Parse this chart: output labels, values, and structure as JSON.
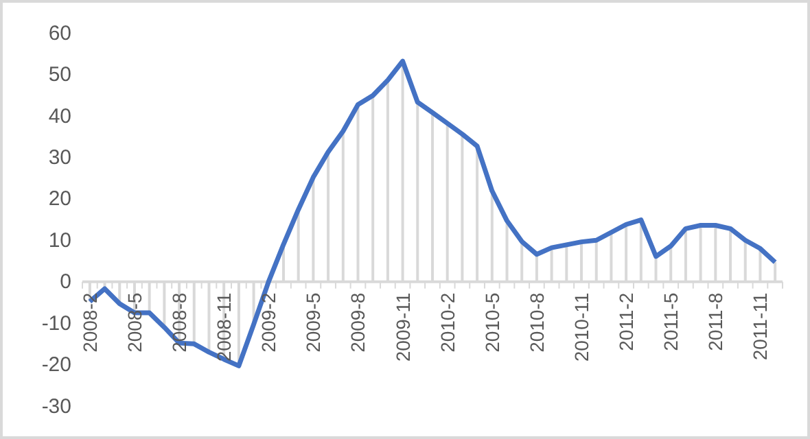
{
  "chart_data": {
    "type": "line",
    "categories": [
      "2008-2",
      null,
      null,
      "2008-5",
      null,
      null,
      "2008-8",
      null,
      null,
      "2008-11",
      null,
      null,
      "2009-2",
      null,
      null,
      "2009-5",
      null,
      null,
      "2009-8",
      null,
      null,
      "2009-11",
      null,
      null,
      "2010-2",
      null,
      null,
      "2010-5",
      null,
      null,
      "2010-8",
      null,
      null,
      "2010-11",
      null,
      null,
      "2011-2",
      null,
      null,
      "2011-5",
      null,
      null,
      "2011-8",
      null,
      null,
      "2011-11",
      null
    ],
    "series": [
      {
        "type": "bar",
        "color": "#d9d9d9",
        "values": [
          -4.8,
          -1.7,
          -5.3,
          -7.5,
          -7.5,
          -11,
          -14.8,
          -15,
          -17,
          -18.7,
          -20.3,
          -10.3,
          0,
          9,
          17.4,
          25.2,
          31.3,
          36.3,
          42.7,
          44.9,
          48.6,
          53.2,
          43.3,
          40.8,
          38.2,
          35.6,
          32.7,
          21.9,
          14.7,
          9.7,
          6.6,
          8.2,
          8.9,
          9.6,
          10,
          11.9,
          13.8,
          14.9,
          6.1,
          8.6,
          12.8,
          13.6,
          13.6,
          12.8,
          10,
          8,
          4.7
        ]
      },
      {
        "color": "#4472c4",
        "values": [
          -4.8,
          -1.7,
          -5.3,
          -7.5,
          -7.5,
          -11,
          -14.8,
          -15,
          -17,
          -18.7,
          -20.3,
          -10.3,
          0,
          9,
          17.4,
          25.2,
          31.3,
          36.3,
          42.7,
          44.9,
          48.6,
          53.2,
          43.3,
          40.8,
          38.2,
          35.6,
          32.7,
          21.9,
          14.7,
          9.7,
          6.6,
          8.2,
          8.9,
          9.6,
          10,
          11.9,
          13.8,
          14.9,
          6.1,
          8.6,
          12.8,
          13.6,
          13.6,
          12.8,
          10,
          8,
          4.7
        ]
      }
    ],
    "ylim": [
      -30,
      60
    ],
    "yticks": [
      -30,
      -20,
      -10,
      0,
      10,
      20,
      30,
      40,
      50,
      60
    ],
    "marker": "none",
    "line_style": "solid"
  }
}
